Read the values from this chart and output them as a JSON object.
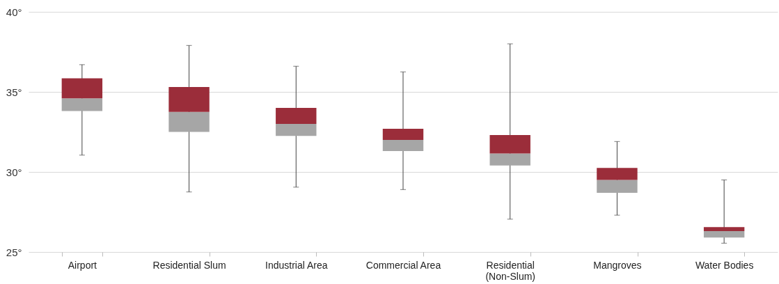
{
  "chart_data": {
    "type": "box",
    "categories": [
      "Airport",
      "Residential Slum",
      "Industrial Area",
      "Commercial Area",
      "Residential (Non-Slum)",
      "Mangroves",
      "Water Bodies"
    ],
    "colors": [
      [
        "#a6a6a6",
        "#9b2d3a"
      ],
      [
        "#a6a6a6",
        "#9b2d3a"
      ],
      [
        "#a6a6a6",
        "#9b2d3a"
      ],
      [
        "#a6a6a6",
        "#9b2d3a"
      ],
      [
        "#a6a6a6",
        "#9b2d3a"
      ],
      [
        "#a6a6a6",
        "#9b2d3a"
      ],
      [
        "#a6a6a6",
        "#9b2d3a"
      ]
    ],
    "boxes": [
      {
        "low": 31.05,
        "q1": 33.8,
        "median": 34.6,
        "q3": 35.85,
        "high": 36.7
      },
      {
        "low": 28.75,
        "q1": 32.5,
        "median": 33.75,
        "q3": 35.3,
        "high": 37.9
      },
      {
        "low": 29.05,
        "q1": 32.25,
        "median": 33.0,
        "q3": 34.0,
        "high": 36.6
      },
      {
        "low": 28.9,
        "q1": 31.3,
        "median": 32.0,
        "q3": 32.7,
        "high": 36.25
      },
      {
        "low": 27.05,
        "q1": 30.4,
        "median": 31.15,
        "q3": 32.3,
        "high": 38.0
      },
      {
        "low": 27.3,
        "q1": 28.7,
        "median": 29.5,
        "q3": 30.25,
        "high": 31.9
      },
      {
        "low": 25.55,
        "q1": 25.9,
        "median": 26.3,
        "q3": 26.55,
        "high": 29.5
      }
    ],
    "ylim": [
      25,
      40
    ],
    "yticks": [
      {
        "value": 25,
        "label": "25°"
      },
      {
        "value": 30,
        "label": "30°"
      },
      {
        "value": 35,
        "label": "35°"
      },
      {
        "value": 40,
        "label": "40°"
      }
    ],
    "grid": "y"
  }
}
